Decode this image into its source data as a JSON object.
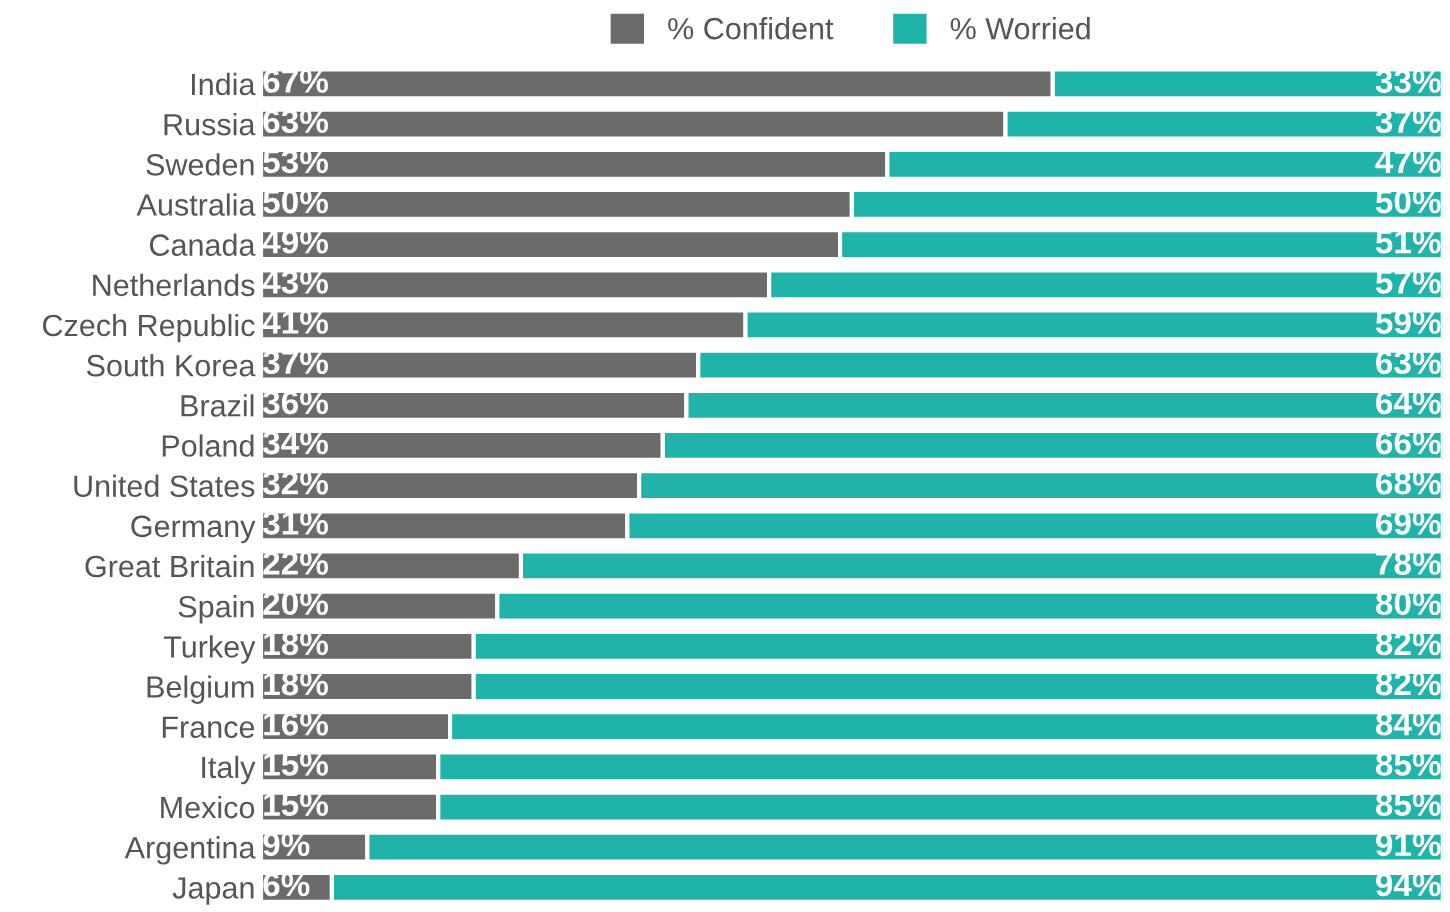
{
  "chart_data": {
    "type": "bar",
    "orientation": "horizontal",
    "stacked": true,
    "categories": [
      "India",
      "Russia",
      "Sweden",
      "Australia",
      "Canada",
      "Netherlands",
      "Czech Republic",
      "South Korea",
      "Brazil",
      "Poland",
      "United States",
      "Germany",
      "Great Britain",
      "Spain",
      "Turkey",
      "Belgium",
      "France",
      "Italy",
      "Mexico",
      "Argentina",
      "Japan"
    ],
    "series": [
      {
        "name": "% Confident",
        "color": "#6b6b6b",
        "values": [
          67,
          63,
          53,
          50,
          49,
          43,
          41,
          37,
          36,
          34,
          32,
          31,
          22,
          20,
          18,
          18,
          16,
          15,
          15,
          9,
          6
        ],
        "value_labels": [
          "67%",
          "63%",
          "53%",
          "50%",
          "49%",
          "43%",
          "41%",
          "37%",
          "36%",
          "34%",
          "32%",
          "31%",
          "22%",
          "20%",
          "18%",
          "18%",
          "16%",
          "15%",
          "15%",
          "9%",
          "6%"
        ]
      },
      {
        "name": "% Worried",
        "color": "#1fb3aa",
        "values": [
          33,
          37,
          47,
          50,
          51,
          57,
          59,
          63,
          64,
          66,
          68,
          69,
          78,
          80,
          82,
          82,
          84,
          85,
          85,
          91,
          94
        ],
        "value_labels": [
          "33%",
          "37%",
          "47%",
          "50%",
          "51%",
          "57%",
          "59%",
          "63%",
          "64%",
          "66%",
          "68%",
          "69%",
          "78%",
          "80%",
          "82%",
          "82%",
          "84%",
          "85%",
          "85%",
          "91%",
          "94%"
        ]
      }
    ],
    "xlim": [
      0,
      100
    ],
    "tick_labels": "y",
    "legend": "top"
  }
}
